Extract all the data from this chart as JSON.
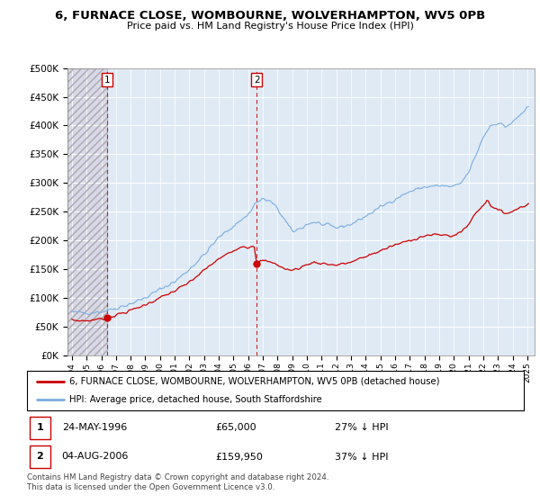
{
  "title": "6, FURNACE CLOSE, WOMBOURNE, WOLVERHAMPTON, WV5 0PB",
  "subtitle": "Price paid vs. HM Land Registry's House Price Index (HPI)",
  "transactions": [
    {
      "num": 1,
      "date": "24-MAY-1996",
      "price": 65000,
      "year": 1996.38,
      "pct": "27% ↓ HPI"
    },
    {
      "num": 2,
      "date": "04-AUG-2006",
      "price": 159950,
      "year": 2006.59,
      "pct": "37% ↓ HPI"
    }
  ],
  "legend_line1": "6, FURNACE CLOSE, WOMBOURNE, WOLVERHAMPTON, WV5 0PB (detached house)",
  "legend_line2": "HPI: Average price, detached house, South Staffordshire",
  "footer": "Contains HM Land Registry data © Crown copyright and database right 2024.\nThis data is licensed under the Open Government Licence v3.0.",
  "red_color": "#cc0000",
  "blue_color": "#7aade0",
  "ylim": [
    0,
    500000
  ],
  "xlim_start": 1993.7,
  "xlim_end": 2025.5,
  "yticks": [
    0,
    50000,
    100000,
    150000,
    200000,
    250000,
    300000,
    350000,
    400000,
    450000,
    500000
  ],
  "xticks": [
    1994,
    1995,
    1996,
    1997,
    1998,
    1999,
    2000,
    2001,
    2002,
    2003,
    2004,
    2005,
    2006,
    2007,
    2008,
    2009,
    2010,
    2011,
    2012,
    2013,
    2014,
    2015,
    2016,
    2017,
    2018,
    2019,
    2020,
    2021,
    2022,
    2023,
    2024,
    2025
  ]
}
